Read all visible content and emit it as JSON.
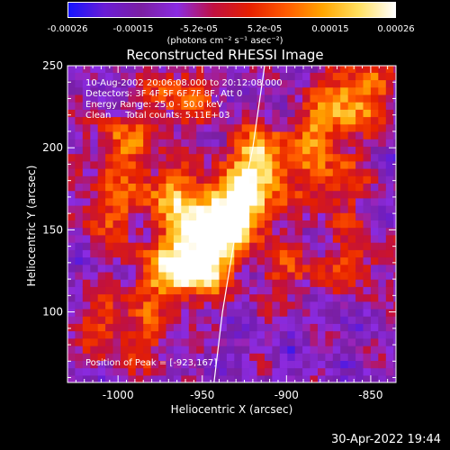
{
  "colorbar": {
    "ticks": [
      "-0.00026",
      "-0.00015",
      "-5.2e-05",
      "5.2e-05",
      "0.00015",
      "0.00026"
    ],
    "label": "(photons cm⁻² s⁻¹ asec⁻²)",
    "colors": [
      "#1414ff",
      "#6a1dd6",
      "#7b1fa2",
      "#8a2be2",
      "#c01040",
      "#e62000",
      "#ff5a00",
      "#ffa500",
      "#ffe060",
      "#ffffff"
    ]
  },
  "info": {
    "line1": "10-Aug-2002 20:06:08.000 to 20:12:08.000",
    "line2": "Detectors: 3F 4F 5F 6F 7F 8F, Att 0",
    "line3": "Energy Range: 25.0 - 50.0 keV",
    "line4": "Clean     Total counts: 5.11E+03"
  },
  "peak_label": "Position of Peak = [-923,167]",
  "footer": "30-Apr-2022 19:44",
  "chart_data": {
    "type": "heatmap",
    "title": "Reconstructed RHESSI Image",
    "xlabel": "Heliocentric X (arcsec)",
    "ylabel": "Heliocentric Y (arcsec)",
    "xlim": [
      -1030,
      -835
    ],
    "ylim": [
      57,
      250
    ],
    "xticks": [
      -1000,
      -950,
      -900,
      -850
    ],
    "xtick_labels": [
      "-1000",
      "-950",
      "-900",
      "-850"
    ],
    "yticks": [
      100,
      150,
      200,
      250
    ],
    "ytick_labels": [
      "100",
      "150",
      "200",
      "250"
    ],
    "peak": [
      -923,
      167
    ],
    "colorbar_range": [
      -0.00026,
      0.00026
    ],
    "limb_curve": [
      [
        -943,
        57
      ],
      [
        -938,
        100
      ],
      [
        -930,
        150
      ],
      [
        -920,
        200
      ],
      [
        -913,
        250
      ]
    ],
    "bright_regions": [
      {
        "x": -955,
        "y": 126,
        "level": 1.0
      },
      {
        "x": -930,
        "y": 160,
        "level": 0.95
      },
      {
        "x": -918,
        "y": 190,
        "level": 0.85
      },
      {
        "x": -950,
        "y": 150,
        "level": 0.7
      },
      {
        "x": -972,
        "y": 170,
        "level": 0.55
      },
      {
        "x": -880,
        "y": 210,
        "level": 0.55
      },
      {
        "x": -1000,
        "y": 200,
        "level": 0.5
      },
      {
        "x": -980,
        "y": 120,
        "level": 0.45
      },
      {
        "x": -860,
        "y": 130,
        "level": 0.4
      },
      {
        "x": -875,
        "y": 175,
        "level": 0.45
      },
      {
        "x": -1010,
        "y": 90,
        "level": 0.35
      },
      {
        "x": -1010,
        "y": 160,
        "level": 0.45
      },
      {
        "x": -860,
        "y": 233,
        "level": 0.65
      },
      {
        "x": -965,
        "y": 230,
        "level": 0.5
      },
      {
        "x": -900,
        "y": 120,
        "level": 0.35
      },
      {
        "x": -985,
        "y": 80,
        "level": 0.3
      }
    ]
  }
}
